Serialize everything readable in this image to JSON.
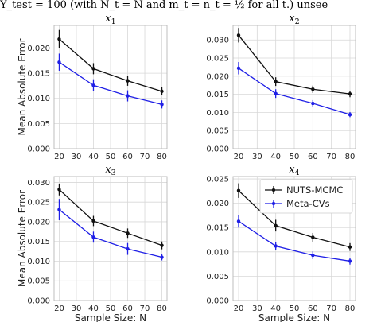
{
  "header_crop_text": "Y_test = 100 (with N_t = N and m_t = n_t = ½ for all t.) unsee",
  "colors": {
    "nuts": "#111111",
    "meta": "#1f1fe6",
    "grid": "#d8d8d8",
    "frame": "#b8b8b8"
  },
  "chart_data": [
    {
      "type": "line",
      "title": "x1",
      "title_var": "x",
      "title_sub": "1",
      "xlabel": "",
      "ylabel": "Mean Absolute Error",
      "x": [
        20,
        40,
        60,
        80
      ],
      "xlim": [
        17,
        83
      ],
      "ylim": [
        0,
        0.0245
      ],
      "yticks": [
        "0.000",
        "0.005",
        "0.010",
        "0.015",
        "0.020"
      ],
      "ytick_values": [
        0,
        0.005,
        0.01,
        0.015,
        0.02
      ],
      "xticks": [
        "20",
        "30",
        "40",
        "50",
        "60",
        "70",
        "80"
      ],
      "grid": true,
      "series": [
        {
          "name": "NUTS-MCMC",
          "values": [
            0.0218,
            0.0159,
            0.0135,
            0.0114
          ],
          "err": [
            0.0018,
            0.0011,
            0.001,
            0.0008
          ]
        },
        {
          "name": "Meta-CVs",
          "values": [
            0.0172,
            0.0126,
            0.0105,
            0.0088
          ],
          "err": [
            0.0017,
            0.0012,
            0.0011,
            0.0008
          ]
        }
      ]
    },
    {
      "type": "line",
      "title": "x2",
      "title_var": "x",
      "title_sub": "2",
      "xlabel": "",
      "ylabel": "",
      "x": [
        20,
        40,
        60,
        80
      ],
      "xlim": [
        17,
        83
      ],
      "ylim": [
        0,
        0.034
      ],
      "yticks": [
        "0.000",
        "0.005",
        "0.010",
        "0.015",
        "0.020",
        "0.025",
        "0.030"
      ],
      "ytick_values": [
        0,
        0.005,
        0.01,
        0.015,
        0.02,
        0.025,
        0.03
      ],
      "xticks": [
        "20",
        "30",
        "40",
        "50",
        "60",
        "70",
        "80"
      ],
      "grid": true,
      "series": [
        {
          "name": "NUTS-MCMC",
          "values": [
            0.0313,
            0.0185,
            0.0164,
            0.0151
          ],
          "err": [
            0.002,
            0.0012,
            0.001,
            0.0009
          ]
        },
        {
          "name": "Meta-CVs",
          "values": [
            0.0222,
            0.0152,
            0.0125,
            0.0094
          ],
          "err": [
            0.0017,
            0.0012,
            0.0009,
            0.0007
          ]
        }
      ]
    },
    {
      "type": "line",
      "title": "x3",
      "title_var": "x",
      "title_sub": "3",
      "xlabel": "Sample Size: N",
      "ylabel": "Mean Absolute Error",
      "x": [
        20,
        40,
        60,
        80
      ],
      "xlim": [
        17,
        83
      ],
      "ylim": [
        0,
        0.0315
      ],
      "yticks": [
        "0.000",
        "0.005",
        "0.010",
        "0.015",
        "0.020",
        "0.025",
        "0.030"
      ],
      "ytick_values": [
        0,
        0.005,
        0.01,
        0.015,
        0.02,
        0.025,
        0.03
      ],
      "xticks": [
        "20",
        "30",
        "40",
        "50",
        "60",
        "70",
        "80"
      ],
      "grid": true,
      "series": [
        {
          "name": "NUTS-MCMC",
          "values": [
            0.0282,
            0.0202,
            0.0171,
            0.014
          ],
          "err": [
            0.0015,
            0.0013,
            0.0012,
            0.001
          ]
        },
        {
          "name": "Meta-CVs",
          "values": [
            0.0231,
            0.0161,
            0.0131,
            0.011
          ],
          "err": [
            0.0027,
            0.0014,
            0.0015,
            0.0008
          ]
        }
      ]
    },
    {
      "type": "line",
      "title": "x4",
      "title_var": "x",
      "title_sub": "4",
      "xlabel": "Sample Size: N",
      "ylabel": "",
      "x": [
        20,
        40,
        60,
        80
      ],
      "xlim": [
        17,
        83
      ],
      "ylim": [
        0,
        0.0255
      ],
      "yticks": [
        "0.000",
        "0.005",
        "0.010",
        "0.015",
        "0.020",
        "0.025"
      ],
      "ytick_values": [
        0,
        0.005,
        0.01,
        0.015,
        0.02,
        0.025
      ],
      "xticks": [
        "20",
        "30",
        "40",
        "50",
        "60",
        "70",
        "80"
      ],
      "grid": true,
      "legend": {
        "placement": "top-right",
        "entries": [
          "NUTS-MCMC",
          "Meta-CVs"
        ]
      },
      "series": [
        {
          "name": "NUTS-MCMC",
          "values": [
            0.0226,
            0.0154,
            0.013,
            0.011
          ],
          "err": [
            0.0015,
            0.0012,
            0.0009,
            0.0008
          ]
        },
        {
          "name": "Meta-CVs",
          "values": [
            0.0163,
            0.0112,
            0.0093,
            0.0081
          ],
          "err": [
            0.0013,
            0.0009,
            0.0008,
            0.0007
          ]
        }
      ]
    }
  ]
}
